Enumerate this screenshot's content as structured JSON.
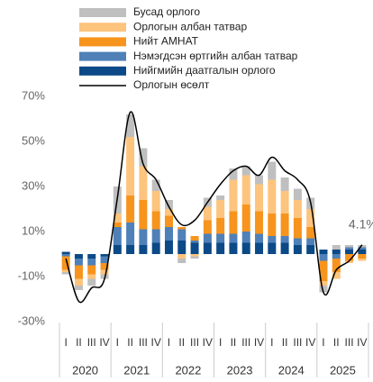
{
  "chart_data": {
    "type": "stacked_bar_line",
    "categories": [
      "I",
      "II",
      "III",
      "IV",
      "I",
      "II",
      "III",
      "IV",
      "I",
      "II",
      "III",
      "IV",
      "I",
      "II",
      "III",
      "IV",
      "I",
      "II",
      "III",
      "IV",
      "I",
      "II",
      "III",
      "IV"
    ],
    "years": [
      "2020",
      "2021",
      "2022",
      "2023",
      "2024",
      "2025"
    ],
    "ylim": [
      -30,
      70
    ],
    "yticks": [
      {
        "value": -30,
        "label": "-30%"
      },
      {
        "value": -10,
        "label": "-10%"
      },
      {
        "value": 10,
        "label": "10%"
      },
      {
        "value": 30,
        "label": "30%"
      },
      {
        "value": 50,
        "label": "50%"
      },
      {
        "value": 70,
        "label": "70%"
      }
    ],
    "series": [
      {
        "name": "Нийгмийн даатгалын орлого",
        "color": "#0b4a87",
        "type": "bar",
        "values": [
          1,
          -2,
          -2,
          -1,
          4,
          4,
          4,
          5,
          6,
          6,
          5,
          5,
          5,
          5,
          5,
          5,
          5,
          5,
          4,
          4,
          2,
          2,
          2,
          2
        ]
      },
      {
        "name": "Нэмэгдсэн өртгийн албан татвар",
        "color": "#4f80b8",
        "type": "bar",
        "values": [
          -1,
          -3,
          -3,
          -3,
          8,
          10,
          7,
          6,
          6,
          5,
          1,
          4,
          4,
          4,
          5,
          4,
          3,
          3,
          3,
          3,
          -3,
          -2,
          1,
          1
        ]
      },
      {
        "name": "Нийт АМНАТ",
        "color": "#f7941d",
        "type": "bar",
        "values": [
          -6,
          -6,
          -4,
          -3,
          2,
          12,
          13,
          8,
          5,
          1,
          2,
          6,
          7,
          10,
          12,
          10,
          10,
          10,
          9,
          5,
          -9,
          -6,
          -3,
          -2
        ]
      },
      {
        "name": "Орлогын албан татвар",
        "color": "#fdc47e",
        "type": "bar",
        "values": [
          -1,
          -3,
          -2,
          -2,
          4,
          26,
          15,
          9,
          3,
          -2,
          -1,
          6,
          8,
          14,
          13,
          12,
          15,
          10,
          8,
          8,
          -2,
          -3,
          -1,
          -1
        ]
      },
      {
        "name": "Бусад орлого",
        "color": "#bfbfbf",
        "type": "bar",
        "values": [
          -1,
          -2,
          -3,
          -2,
          12,
          10,
          8,
          5,
          4,
          -2,
          -1,
          4,
          2,
          5,
          4,
          4,
          8,
          6,
          5,
          5,
          -3,
          2,
          1,
          1
        ]
      },
      {
        "name": "Орлогын өсөлт",
        "color": "#000000",
        "type": "line",
        "values": [
          -2,
          -21,
          -15,
          -11,
          25,
          63,
          40,
          33,
          21,
          13,
          15,
          23,
          31,
          37,
          39,
          35,
          43,
          37,
          33,
          23,
          -17,
          -7,
          -3,
          4.1
        ],
        "value_labels": [
          null,
          null,
          null,
          null,
          null,
          null,
          null,
          null,
          null,
          null,
          null,
          null,
          null,
          null,
          null,
          null,
          null,
          null,
          null,
          null,
          null,
          null,
          null,
          "4.1%"
        ]
      }
    ]
  }
}
